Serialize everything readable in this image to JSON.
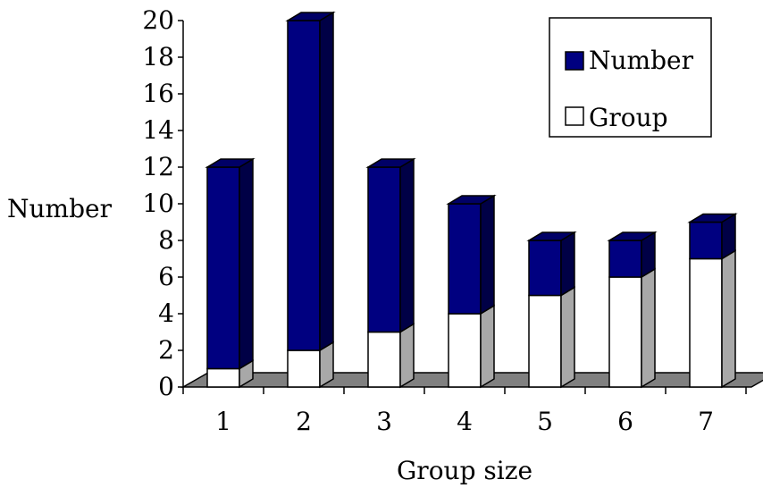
{
  "chart_data": {
    "type": "bar",
    "stacked": true,
    "three_d": true,
    "categories": [
      "1",
      "2",
      "3",
      "4",
      "5",
      "6",
      "7"
    ],
    "series": [
      {
        "name": "Group",
        "values": [
          1,
          2,
          3,
          4,
          5,
          6,
          7
        ],
        "color": "#ffffff"
      },
      {
        "name": "Number",
        "values": [
          11,
          18,
          9,
          6,
          3,
          2,
          2
        ],
        "color": "#000080"
      }
    ],
    "xlabel": "Group size",
    "ylabel": "Number",
    "ylim": [
      0,
      20
    ],
    "yticks": [
      "0",
      "2",
      "4",
      "6",
      "8",
      "10",
      "12",
      "14",
      "16",
      "18",
      "20"
    ],
    "grid": false,
    "legend_position": "top-right",
    "floor_color": "#808080"
  }
}
